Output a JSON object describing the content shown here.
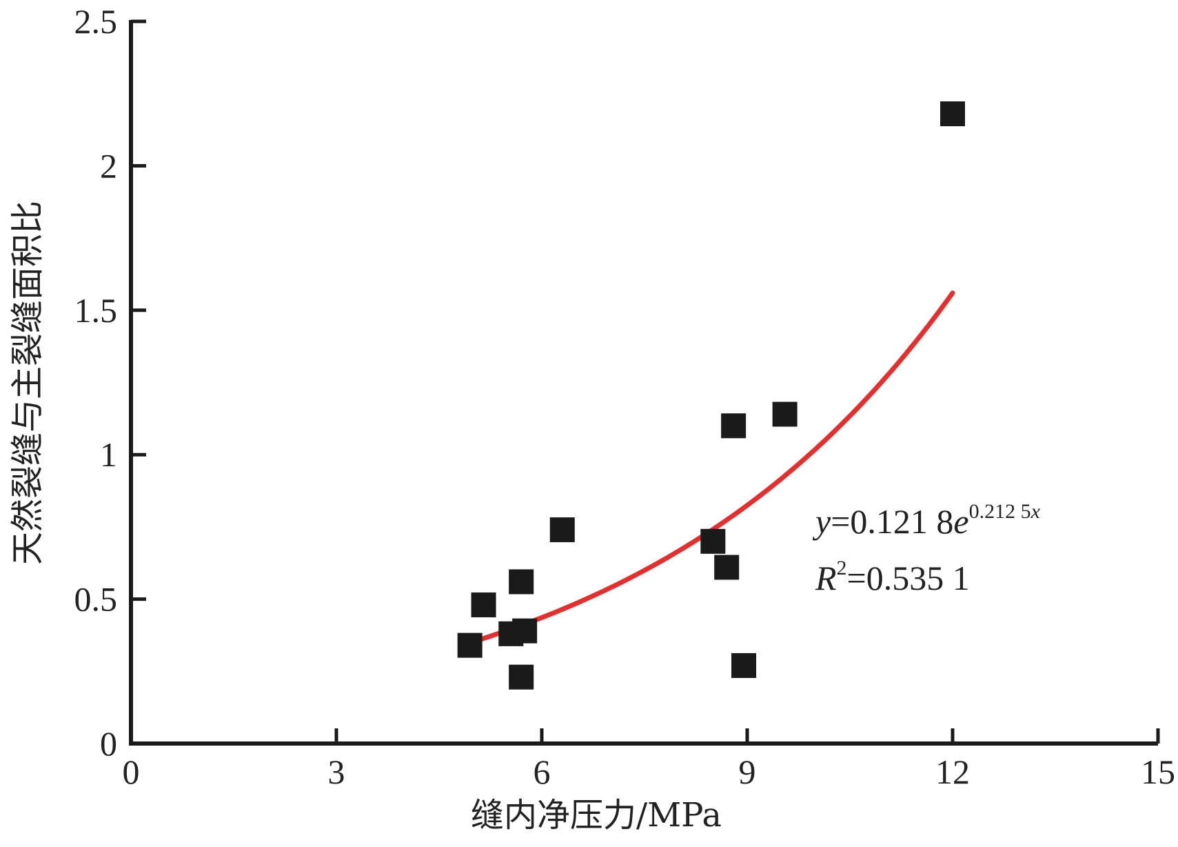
{
  "chart_data": {
    "type": "scatter",
    "title": "",
    "xlabel": "缝内净压力/MPa",
    "ylabel": "天然裂缝与主裂缝面积比",
    "xlim": [
      0,
      15
    ],
    "ylim": [
      0,
      2.5
    ],
    "xticks": [
      0,
      3,
      6,
      9,
      12,
      15
    ],
    "xtick_labels": [
      "0",
      "3",
      "6",
      "9",
      "12",
      "15"
    ],
    "yticks": [
      0,
      0.5,
      1,
      1.5,
      2,
      2.5
    ],
    "ytick_labels": [
      "0",
      "0.5",
      "1",
      "1.5",
      "2",
      "2.5"
    ],
    "grid": false,
    "legend": "none",
    "marker_color": "#1a1a1a",
    "fit_color": "#e03030",
    "points": [
      {
        "x": 4.95,
        "y": 0.34
      },
      {
        "x": 5.15,
        "y": 0.48
      },
      {
        "x": 5.55,
        "y": 0.38
      },
      {
        "x": 5.75,
        "y": 0.39
      },
      {
        "x": 5.7,
        "y": 0.56
      },
      {
        "x": 5.7,
        "y": 0.23
      },
      {
        "x": 6.3,
        "y": 0.74
      },
      {
        "x": 8.5,
        "y": 0.7
      },
      {
        "x": 8.7,
        "y": 0.61
      },
      {
        "x": 8.8,
        "y": 1.1
      },
      {
        "x": 8.95,
        "y": 0.27
      },
      {
        "x": 9.55,
        "y": 1.14
      },
      {
        "x": 12.0,
        "y": 2.18
      }
    ],
    "fit": {
      "model": "exponential",
      "a": 0.1218,
      "b": 0.2125,
      "x_range": [
        4.95,
        12.0
      ]
    },
    "annotation": {
      "eq_y": "y",
      "eq_mid": "=0.121 8",
      "eq_e": "e",
      "eq_exp": "0.212 5",
      "eq_x": "x",
      "r2_r": "R",
      "r2_sup": "2",
      "r2_val": "=0.535 1"
    }
  }
}
